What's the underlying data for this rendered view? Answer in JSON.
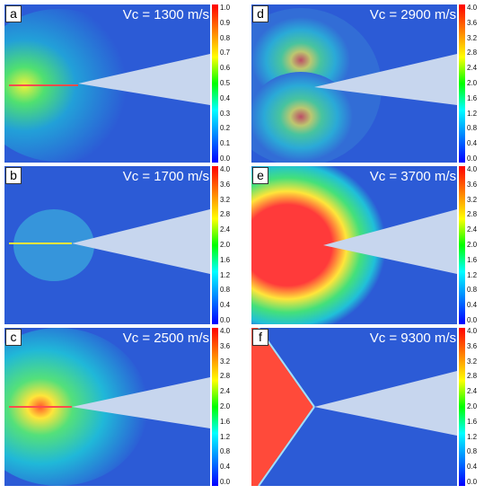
{
  "colorbar_gradient": [
    "#ff0000",
    "#ff7f00",
    "#ffff00",
    "#00ff00",
    "#00ffff",
    "#0080ff",
    "#0000ff"
  ],
  "panels": [
    {
      "letter": "a",
      "label": "Vc = 1300 m/s",
      "ticks": [
        "1.0",
        "0.9",
        "0.8",
        "0.7",
        "0.6",
        "0.5",
        "0.4",
        "0.3",
        "0.2",
        "0.1",
        "0.0"
      ],
      "zone": "small"
    },
    {
      "letter": "d",
      "label": "Vc = 2900 m/s",
      "ticks": [
        "4.0",
        "3.6",
        "3.2",
        "2.8",
        "2.4",
        "2.0",
        "1.6",
        "1.2",
        "0.8",
        "0.4",
        "0.0"
      ],
      "zone": "lobes"
    },
    {
      "letter": "b",
      "label": "Vc = 1700 m/s",
      "ticks": [
        "4.0",
        "3.6",
        "3.2",
        "2.8",
        "2.4",
        "2.0",
        "1.6",
        "1.2",
        "0.8",
        "0.4",
        "0.0"
      ],
      "zone": "faint"
    },
    {
      "letter": "e",
      "label": "Vc = 3700 m/s",
      "ticks": [
        "4.0",
        "3.6",
        "3.2",
        "2.8",
        "2.4",
        "2.0",
        "1.6",
        "1.2",
        "0.8",
        "0.4",
        "0.0"
      ],
      "zone": "large"
    },
    {
      "letter": "c",
      "label": "Vc = 2500 m/s",
      "ticks": [
        "4.0",
        "3.6",
        "3.2",
        "2.8",
        "2.4",
        "2.0",
        "1.6",
        "1.2",
        "0.8",
        "0.4",
        "0.0"
      ],
      "zone": "medium"
    },
    {
      "letter": "f",
      "label": "Vc = 9300 m/s",
      "ticks": [
        "4.0",
        "3.6",
        "3.2",
        "2.8",
        "2.4",
        "2.0",
        "1.6",
        "1.2",
        "0.8",
        "0.4",
        "0.0"
      ],
      "zone": "shock"
    }
  ]
}
